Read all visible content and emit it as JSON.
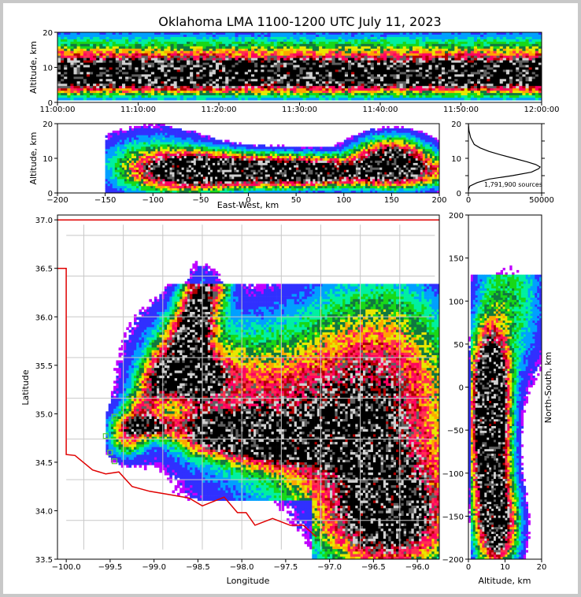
{
  "title": "Oklahoma LMA 1100-1200 UTC July 11, 2023",
  "palette": [
    "#ffffff",
    "#c000ff",
    "#3030ff",
    "#00a0ff",
    "#00f0a0",
    "#18d818",
    "#107840",
    "#e8e800",
    "#ffa500",
    "#ff3050",
    "#ff0060",
    "#b00000",
    "#606060",
    "#d0d0d0",
    "#000000"
  ],
  "chart_data": [
    {
      "type": "heatmap",
      "name": "time-height",
      "xlabel": "",
      "ylabel": "Altitude, km",
      "xticks": [
        "11:00:00",
        "11:10:00",
        "11:20:00",
        "11:30:00",
        "11:40:00",
        "11:50:00",
        "12:00:00"
      ],
      "ylim": [
        0,
        20
      ],
      "yticks": [
        "0",
        "10",
        "20"
      ]
    },
    {
      "type": "heatmap",
      "name": "east-west-altitude",
      "xlabel": "East-West, km",
      "ylabel": "Altitude, km",
      "xlim": [
        -200,
        200
      ],
      "xticks": [
        "−200",
        "−150",
        "−100",
        "−50",
        "0",
        "50",
        "100",
        "150",
        "200"
      ],
      "ylim": [
        0,
        20
      ],
      "yticks": [
        "0",
        "10",
        "20"
      ]
    },
    {
      "type": "line",
      "name": "altitude-histogram",
      "xticks": [
        "0",
        "50000"
      ],
      "yticks": [
        "0",
        "5",
        "10",
        "15",
        "20"
      ],
      "annotation": "1,791,900 sources",
      "x": [
        0,
        400,
        1500,
        4000,
        8000,
        14000,
        22000,
        31000,
        40000,
        46000,
        49000,
        48000,
        43000,
        30000,
        14000,
        6000,
        1000,
        200,
        20
      ],
      "y": [
        20,
        18,
        16,
        14,
        13,
        12,
        11,
        10,
        9,
        8.2,
        7.5,
        7,
        6,
        5,
        4,
        3,
        2,
        1.2,
        0.5
      ]
    },
    {
      "type": "heatmap",
      "name": "plan-view",
      "xlabel": "Longitude",
      "ylabel": "Latitude",
      "xlim": [
        -100.1,
        -95.75
      ],
      "ylim": [
        33.5,
        37.05
      ],
      "xticks": [
        "−100.0",
        "−99.5",
        "−99.0",
        "−98.5",
        "−98.0",
        "−97.5",
        "−97.0",
        "−96.5",
        "−96.0"
      ],
      "yticks": [
        "33.5",
        "34.0",
        "34.5",
        "35.0",
        "35.5",
        "36.0",
        "36.5",
        "37.0"
      ]
    },
    {
      "type": "heatmap",
      "name": "north-south-altitude",
      "xlabel": "Altitude, km",
      "ylabel": "North-South, km",
      "xticks": [
        "0",
        "10",
        "20"
      ],
      "yticks": [
        "−200",
        "−150",
        "−100",
        "−50",
        "0",
        "50",
        "100",
        "150",
        "200"
      ]
    }
  ]
}
